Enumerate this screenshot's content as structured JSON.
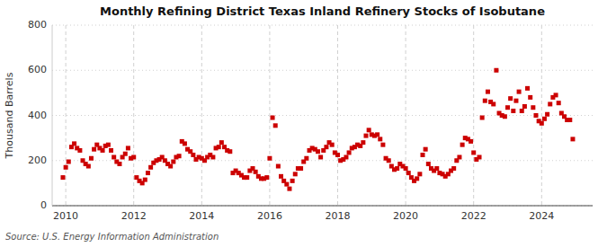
{
  "chart_data": {
    "type": "scatter",
    "title": "Monthly Refining District Texas Inland Refinery Stocks of Isobutane",
    "ylabel": "Thousand Barrels",
    "source": "Source: U.S. Energy Information Administration",
    "color": "#cc0000",
    "marker": "square",
    "grid": true,
    "xlim": [
      2009.6,
      2025.5
    ],
    "ylim": [
      0,
      800
    ],
    "xticks": [
      2010,
      2012,
      2014,
      2016,
      2018,
      2020,
      2022,
      2024
    ],
    "yticks": [
      0,
      200,
      400,
      600,
      800
    ],
    "x": [
      2009.917,
      2010.0,
      2010.083,
      2010.167,
      2010.25,
      2010.333,
      2010.417,
      2010.5,
      2010.583,
      2010.667,
      2010.75,
      2010.833,
      2010.917,
      2011.0,
      2011.083,
      2011.167,
      2011.25,
      2011.333,
      2011.417,
      2011.5,
      2011.583,
      2011.667,
      2011.75,
      2011.833,
      2011.917,
      2012.0,
      2012.083,
      2012.167,
      2012.25,
      2012.333,
      2012.417,
      2012.5,
      2012.583,
      2012.667,
      2012.75,
      2012.833,
      2012.917,
      2013.0,
      2013.083,
      2013.167,
      2013.25,
      2013.333,
      2013.417,
      2013.5,
      2013.583,
      2013.667,
      2013.75,
      2013.833,
      2013.917,
      2014.0,
      2014.083,
      2014.167,
      2014.25,
      2014.333,
      2014.417,
      2014.5,
      2014.583,
      2014.667,
      2014.75,
      2014.833,
      2014.917,
      2015.0,
      2015.083,
      2015.167,
      2015.25,
      2015.333,
      2015.417,
      2015.5,
      2015.583,
      2015.667,
      2015.75,
      2015.833,
      2015.917,
      2016.0,
      2016.083,
      2016.167,
      2016.25,
      2016.333,
      2016.417,
      2016.5,
      2016.583,
      2016.667,
      2016.75,
      2016.833,
      2016.917,
      2017.0,
      2017.083,
      2017.167,
      2017.25,
      2017.333,
      2017.417,
      2017.5,
      2017.583,
      2017.667,
      2017.75,
      2017.833,
      2017.917,
      2018.0,
      2018.083,
      2018.167,
      2018.25,
      2018.333,
      2018.417,
      2018.5,
      2018.583,
      2018.667,
      2018.75,
      2018.833,
      2018.917,
      2019.0,
      2019.083,
      2019.167,
      2019.25,
      2019.333,
      2019.417,
      2019.5,
      2019.583,
      2019.667,
      2019.75,
      2019.833,
      2019.917,
      2020.0,
      2020.083,
      2020.167,
      2020.25,
      2020.333,
      2020.417,
      2020.5,
      2020.583,
      2020.667,
      2020.75,
      2020.833,
      2020.917,
      2021.0,
      2021.083,
      2021.167,
      2021.25,
      2021.333,
      2021.417,
      2021.5,
      2021.583,
      2021.667,
      2021.75,
      2021.833,
      2021.917,
      2022.0,
      2022.083,
      2022.167,
      2022.25,
      2022.333,
      2022.417,
      2022.5,
      2022.583,
      2022.667,
      2022.75,
      2022.833,
      2022.917,
      2023.0,
      2023.083,
      2023.167,
      2023.25,
      2023.333,
      2023.417,
      2023.5,
      2023.583,
      2023.667,
      2023.75,
      2023.833,
      2023.917,
      2024.0,
      2024.083,
      2024.167,
      2024.25,
      2024.333,
      2024.417,
      2024.5,
      2024.583,
      2024.667,
      2024.75,
      2024.833,
      2024.917
    ],
    "values": [
      125,
      170,
      195,
      260,
      275,
      255,
      245,
      200,
      185,
      175,
      210,
      250,
      270,
      255,
      245,
      265,
      270,
      245,
      215,
      195,
      185,
      215,
      230,
      255,
      210,
      215,
      125,
      110,
      100,
      115,
      145,
      170,
      190,
      200,
      205,
      215,
      200,
      185,
      175,
      195,
      215,
      220,
      285,
      275,
      250,
      240,
      225,
      205,
      215,
      210,
      200,
      215,
      225,
      215,
      255,
      260,
      280,
      260,
      245,
      240,
      145,
      155,
      145,
      135,
      125,
      125,
      155,
      165,
      150,
      130,
      120,
      120,
      125,
      210,
      390,
      355,
      175,
      130,
      110,
      95,
      75,
      110,
      140,
      165,
      165,
      195,
      210,
      245,
      255,
      250,
      240,
      215,
      245,
      260,
      280,
      270,
      235,
      225,
      200,
      205,
      215,
      235,
      255,
      260,
      270,
      265,
      280,
      310,
      335,
      315,
      310,
      315,
      295,
      270,
      210,
      200,
      175,
      160,
      165,
      185,
      175,
      165,
      145,
      125,
      110,
      120,
      140,
      225,
      250,
      185,
      165,
      155,
      165,
      145,
      140,
      130,
      140,
      155,
      165,
      200,
      215,
      270,
      300,
      295,
      285,
      235,
      205,
      215,
      390,
      465,
      505,
      460,
      450,
      600,
      410,
      400,
      395,
      435,
      475,
      420,
      465,
      505,
      420,
      440,
      520,
      480,
      435,
      400,
      375,
      365,
      385,
      405,
      450,
      480,
      490,
      455,
      410,
      395,
      380,
      380,
      295
    ]
  }
}
